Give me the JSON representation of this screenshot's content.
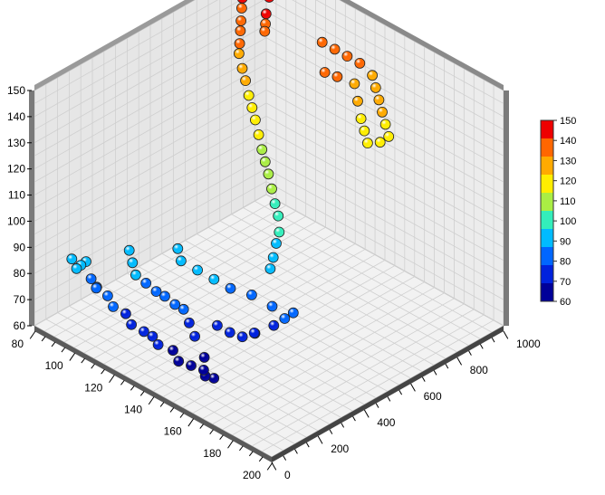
{
  "chart_data": {
    "type": "scatter3d",
    "title": "",
    "xlabel": "",
    "ylabel": "",
    "zlabel": "",
    "grid": true,
    "legend": "right (color bar)",
    "x_axis": {
      "range": [
        80,
        200
      ],
      "ticks": [
        "80",
        "100",
        "120",
        "140",
        "160",
        "180",
        "200"
      ]
    },
    "y_axis": {
      "range": [
        0,
        1000
      ],
      "ticks": [
        "0",
        "200",
        "400",
        "600",
        "800",
        "1000"
      ]
    },
    "z_axis": {
      "range": [
        60,
        150
      ],
      "ticks": [
        "60",
        "70",
        "80",
        "90",
        "100",
        "110",
        "120",
        "130",
        "140",
        "150"
      ]
    },
    "colorbar": {
      "ticks": [
        "60",
        "70",
        "80",
        "90",
        "100",
        "110",
        "120",
        "130",
        "140",
        "150"
      ],
      "colors": [
        "#000099",
        "#0022dd",
        "#0066ff",
        "#00bbff",
        "#33eebb",
        "#aaee44",
        "#ffee00",
        "#ffaa00",
        "#ff6600",
        "#ee0000"
      ]
    },
    "points": [
      {
        "x": 100,
        "y": 30,
        "z": 90
      },
      {
        "x": 102,
        "y": 35,
        "z": 92
      },
      {
        "x": 98,
        "y": 28,
        "z": 88
      },
      {
        "x": 96,
        "y": 25,
        "z": 91
      },
      {
        "x": 104,
        "y": 40,
        "z": 86
      },
      {
        "x": 106,
        "y": 45,
        "z": 83
      },
      {
        "x": 108,
        "y": 30,
        "z": 85
      },
      {
        "x": 110,
        "y": 60,
        "z": 81
      },
      {
        "x": 114,
        "y": 50,
        "z": 79
      },
      {
        "x": 118,
        "y": 70,
        "z": 77
      },
      {
        "x": 122,
        "y": 60,
        "z": 75
      },
      {
        "x": 126,
        "y": 80,
        "z": 73
      },
      {
        "x": 128,
        "y": 100,
        "z": 71
      },
      {
        "x": 132,
        "y": 90,
        "z": 70
      },
      {
        "x": 136,
        "y": 120,
        "z": 68
      },
      {
        "x": 140,
        "y": 110,
        "z": 66
      },
      {
        "x": 144,
        "y": 130,
        "z": 65
      },
      {
        "x": 148,
        "y": 150,
        "z": 64
      },
      {
        "x": 150,
        "y": 140,
        "z": 63
      },
      {
        "x": 152,
        "y": 160,
        "z": 62
      },
      {
        "x": 146,
        "y": 170,
        "z": 67
      },
      {
        "x": 140,
        "y": 180,
        "z": 72
      },
      {
        "x": 136,
        "y": 190,
        "z": 75
      },
      {
        "x": 132,
        "y": 200,
        "z": 78
      },
      {
        "x": 130,
        "y": 180,
        "z": 80
      },
      {
        "x": 126,
        "y": 170,
        "z": 82
      },
      {
        "x": 124,
        "y": 150,
        "z": 84
      },
      {
        "x": 120,
        "y": 140,
        "z": 86
      },
      {
        "x": 116,
        "y": 130,
        "z": 88
      },
      {
        "x": 112,
        "y": 150,
        "z": 90
      },
      {
        "x": 108,
        "y": 170,
        "z": 92
      },
      {
        "x": 142,
        "y": 260,
        "z": 73
      },
      {
        "x": 146,
        "y": 280,
        "z": 71
      },
      {
        "x": 150,
        "y": 300,
        "z": 70
      },
      {
        "x": 154,
        "y": 320,
        "z": 72
      },
      {
        "x": 156,
        "y": 300,
        "z": 74
      },
      {
        "x": 160,
        "y": 350,
        "z": 76
      },
      {
        "x": 162,
        "y": 380,
        "z": 78
      },
      {
        "x": 164,
        "y": 400,
        "z": 80
      },
      {
        "x": 158,
        "y": 360,
        "z": 82
      },
      {
        "x": 150,
        "y": 340,
        "z": 84
      },
      {
        "x": 144,
        "y": 300,
        "z": 86
      },
      {
        "x": 138,
        "y": 280,
        "z": 88
      },
      {
        "x": 132,
        "y": 260,
        "z": 90
      },
      {
        "x": 126,
        "y": 240,
        "z": 92
      },
      {
        "x": 122,
        "y": 260,
        "z": 94
      },
      {
        "x": 150,
        "y": 420,
        "z": 90
      },
      {
        "x": 148,
        "y": 450,
        "z": 92
      },
      {
        "x": 146,
        "y": 480,
        "z": 95
      },
      {
        "x": 144,
        "y": 510,
        "z": 97
      },
      {
        "x": 140,
        "y": 540,
        "z": 100
      },
      {
        "x": 136,
        "y": 560,
        "z": 102
      },
      {
        "x": 132,
        "y": 580,
        "z": 105
      },
      {
        "x": 128,
        "y": 600,
        "z": 108
      },
      {
        "x": 124,
        "y": 620,
        "z": 110
      },
      {
        "x": 120,
        "y": 640,
        "z": 112
      },
      {
        "x": 116,
        "y": 660,
        "z": 115
      },
      {
        "x": 112,
        "y": 680,
        "z": 118
      },
      {
        "x": 108,
        "y": 700,
        "z": 120
      },
      {
        "x": 104,
        "y": 720,
        "z": 122
      },
      {
        "x": 100,
        "y": 740,
        "z": 125
      },
      {
        "x": 96,
        "y": 760,
        "z": 127
      },
      {
        "x": 92,
        "y": 780,
        "z": 130
      },
      {
        "x": 90,
        "y": 800,
        "z": 132
      },
      {
        "x": 88,
        "y": 820,
        "z": 135
      },
      {
        "x": 86,
        "y": 840,
        "z": 137
      },
      {
        "x": 84,
        "y": 860,
        "z": 140
      },
      {
        "x": 82,
        "y": 880,
        "z": 142
      },
      {
        "x": 82,
        "y": 900,
        "z": 144
      },
      {
        "x": 84,
        "y": 920,
        "z": 146
      },
      {
        "x": 86,
        "y": 940,
        "z": 148
      },
      {
        "x": 88,
        "y": 960,
        "z": 150
      },
      {
        "x": 90,
        "y": 930,
        "z": 147
      },
      {
        "x": 92,
        "y": 910,
        "z": 145
      },
      {
        "x": 94,
        "y": 880,
        "z": 141
      },
      {
        "x": 96,
        "y": 860,
        "z": 139
      },
      {
        "x": 98,
        "y": 840,
        "z": 138
      },
      {
        "x": 120,
        "y": 900,
        "z": 140
      },
      {
        "x": 124,
        "y": 920,
        "z": 138
      },
      {
        "x": 128,
        "y": 940,
        "z": 136
      },
      {
        "x": 132,
        "y": 960,
        "z": 134
      },
      {
        "x": 136,
        "y": 980,
        "z": 130
      },
      {
        "x": 140,
        "y": 960,
        "z": 128
      },
      {
        "x": 144,
        "y": 940,
        "z": 126
      },
      {
        "x": 148,
        "y": 920,
        "z": 124
      },
      {
        "x": 152,
        "y": 900,
        "z": 122
      },
      {
        "x": 156,
        "y": 880,
        "z": 120
      },
      {
        "x": 154,
        "y": 860,
        "z": 118
      },
      {
        "x": 150,
        "y": 840,
        "z": 117
      },
      {
        "x": 146,
        "y": 860,
        "z": 119
      },
      {
        "x": 142,
        "y": 880,
        "z": 121
      },
      {
        "x": 138,
        "y": 900,
        "z": 125
      },
      {
        "x": 134,
        "y": 920,
        "z": 129
      },
      {
        "x": 130,
        "y": 880,
        "z": 132
      },
      {
        "x": 126,
        "y": 860,
        "z": 133
      }
    ]
  }
}
